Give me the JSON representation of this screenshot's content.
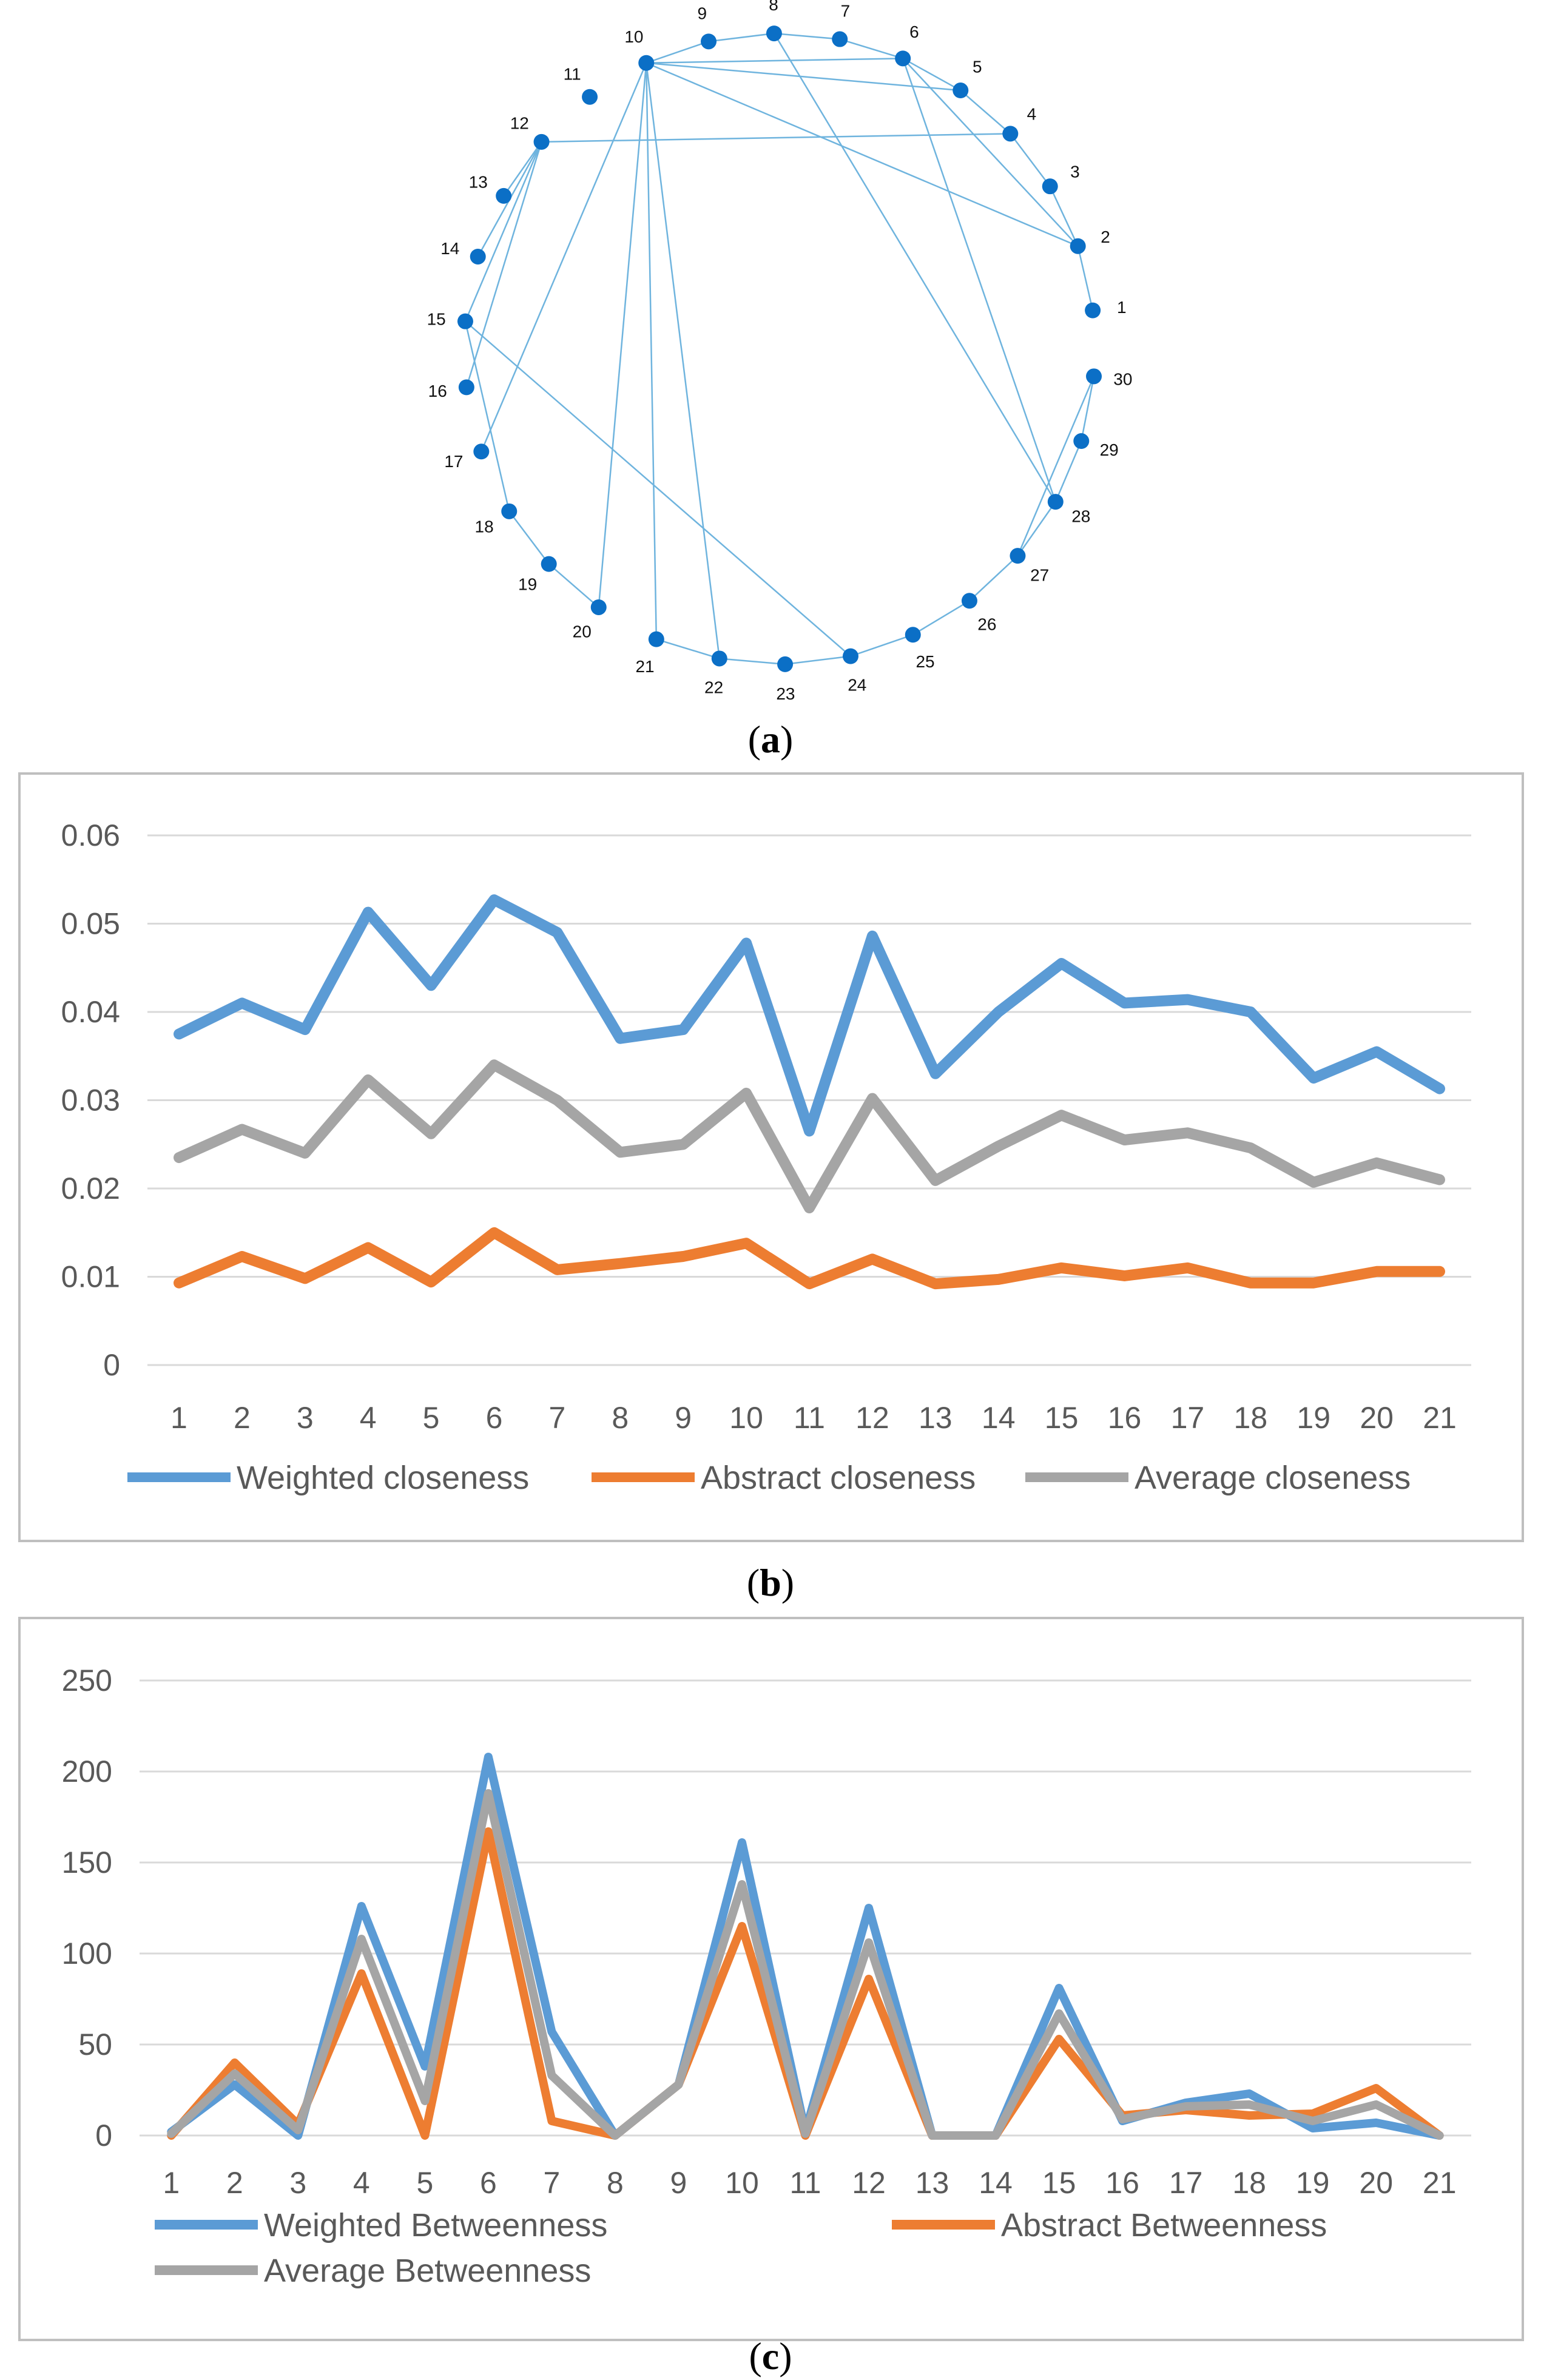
{
  "network": {
    "caption_letter": "a",
    "nodes": [
      "1",
      "2",
      "3",
      "4",
      "5",
      "6",
      "7",
      "8",
      "9",
      "10",
      "11",
      "12",
      "13",
      "14",
      "15",
      "16",
      "17",
      "18",
      "19",
      "20",
      "21",
      "22",
      "23",
      "24",
      "25",
      "26",
      "27",
      "28",
      "29",
      "30"
    ],
    "edges": [
      [
        1,
        2
      ],
      [
        2,
        3
      ],
      [
        3,
        4
      ],
      [
        4,
        5
      ],
      [
        5,
        6
      ],
      [
        6,
        7
      ],
      [
        7,
        8
      ],
      [
        8,
        9
      ],
      [
        9,
        10
      ],
      [
        10,
        6
      ],
      [
        10,
        2
      ],
      [
        10,
        17
      ],
      [
        10,
        20
      ],
      [
        10,
        21
      ],
      [
        10,
        22
      ],
      [
        10,
        5
      ],
      [
        8,
        28
      ],
      [
        6,
        28
      ],
      [
        6,
        2
      ],
      [
        12,
        4
      ],
      [
        12,
        13
      ],
      [
        12,
        14
      ],
      [
        12,
        15
      ],
      [
        12,
        16
      ],
      [
        15,
        18
      ],
      [
        18,
        19
      ],
      [
        19,
        20
      ],
      [
        15,
        24
      ],
      [
        21,
        22
      ],
      [
        22,
        23
      ],
      [
        23,
        24
      ],
      [
        24,
        25
      ],
      [
        25,
        26
      ],
      [
        26,
        27
      ],
      [
        27,
        28
      ],
      [
        28,
        29
      ],
      [
        29,
        30
      ],
      [
        30,
        27
      ]
    ],
    "colors": {
      "node": "#0b6fc6",
      "edge": "#6fb4de"
    }
  },
  "chart_data": [
    {
      "type": "line",
      "panel": "b",
      "caption_letter": "b",
      "categories": [
        "1",
        "2",
        "3",
        "4",
        "5",
        "6",
        "7",
        "8",
        "9",
        "10",
        "11",
        "12",
        "13",
        "14",
        "15",
        "16",
        "17",
        "18",
        "19",
        "20",
        "21"
      ],
      "yticks": [
        "0",
        "0.01",
        "0.02",
        "0.03",
        "0.04",
        "0.05",
        "0.06"
      ],
      "ylim": [
        0,
        0.06
      ],
      "series": [
        {
          "name": "Weighted closeness",
          "color": "#5b9bd5",
          "values": [
            0.0375,
            0.041,
            0.038,
            0.0513,
            0.043,
            0.0527,
            0.049,
            0.037,
            0.038,
            0.0478,
            0.0265,
            0.0486,
            0.033,
            0.04,
            0.0455,
            0.041,
            0.0414,
            0.04,
            0.0325,
            0.0355,
            0.0313
          ]
        },
        {
          "name": "Abstract closeness",
          "color": "#ed7d31",
          "values": [
            0.0093,
            0.0123,
            0.0098,
            0.0133,
            0.0094,
            0.015,
            0.0108,
            0.0115,
            0.0123,
            0.0138,
            0.0092,
            0.012,
            0.0092,
            0.0097,
            0.011,
            0.0101,
            0.011,
            0.0093,
            0.0093,
            0.0106,
            0.0106
          ]
        },
        {
          "name": "Average closeness",
          "color": "#a5a5a5",
          "values": [
            0.0235,
            0.0267,
            0.024,
            0.0323,
            0.0262,
            0.034,
            0.03,
            0.0241,
            0.025,
            0.0308,
            0.0178,
            0.0302,
            0.0209,
            0.0248,
            0.0283,
            0.0255,
            0.0263,
            0.0246,
            0.0207,
            0.0229,
            0.021
          ]
        }
      ]
    },
    {
      "type": "line",
      "panel": "c",
      "caption_letter": "c",
      "categories": [
        "1",
        "2",
        "3",
        "4",
        "5",
        "6",
        "7",
        "8",
        "9",
        "10",
        "11",
        "12",
        "13",
        "14",
        "15",
        "16",
        "17",
        "18",
        "19",
        "20",
        "21"
      ],
      "yticks": [
        "0",
        "50",
        "100",
        "150",
        "200",
        "250"
      ],
      "ylim": [
        0,
        250
      ],
      "series": [
        {
          "name": "Weighted Betweenness",
          "color": "#5b9bd5",
          "values": [
            2,
            28,
            0,
            126,
            38,
            208,
            57,
            0,
            28,
            161,
            2,
            125,
            0,
            0,
            81,
            8,
            18,
            23,
            4,
            7,
            0
          ]
        },
        {
          "name": "Abstract Betweenness",
          "color": "#ed7d31",
          "values": [
            0,
            40,
            6,
            89,
            0,
            167,
            8,
            0,
            28,
            115,
            0,
            86,
            0,
            0,
            53,
            11,
            14,
            11,
            12,
            26,
            0
          ]
        },
        {
          "name": "Average Betweenness",
          "color": "#a5a5a5",
          "values": [
            1,
            34,
            3,
            108,
            19,
            188,
            33,
            0,
            28,
            138,
            1,
            106,
            0,
            0,
            67,
            9,
            16,
            17,
            8,
            17,
            0
          ]
        }
      ]
    }
  ]
}
